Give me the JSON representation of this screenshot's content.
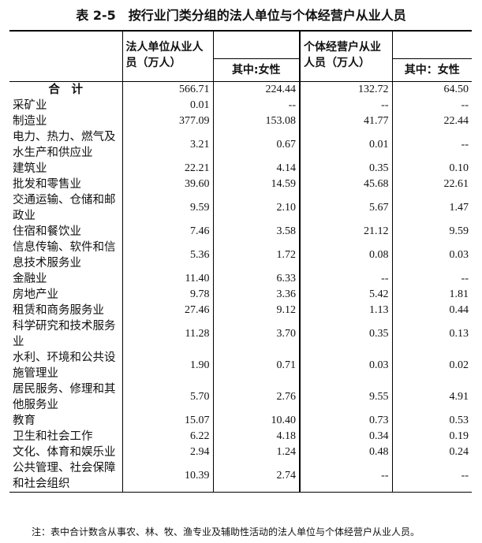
{
  "title": "表 2-5　按行业门类分组的法人单位与个体经营户从业人员",
  "table": {
    "header": [
      "法人单位从业人员（万人）",
      "其中:女性",
      "个体经营户从业人员（万人）",
      "其中：女性"
    ],
    "rows": [
      [
        "合　计",
        "566.71",
        "224.44",
        "132.72",
        "64.50"
      ],
      [
        "采矿业",
        "0.01",
        "--",
        "--",
        "--"
      ],
      [
        "制造业",
        "377.09",
        "153.08",
        "41.77",
        "22.44"
      ],
      [
        "电力、热力、燃气及水生产和供应业",
        "3.21",
        "0.67",
        "0.01",
        "--"
      ],
      [
        "建筑业",
        "22.21",
        "4.14",
        "0.35",
        "0.10"
      ],
      [
        "批发和零售业",
        "39.60",
        "14.59",
        "45.68",
        "22.61"
      ],
      [
        "交通运输、仓储和邮政业",
        "9.59",
        "2.10",
        "5.67",
        "1.47"
      ],
      [
        "住宿和餐饮业",
        "7.46",
        "3.58",
        "21.12",
        "9.59"
      ],
      [
        "信息传输、软件和信息技术服务业",
        "5.36",
        "1.72",
        "0.08",
        "0.03"
      ],
      [
        "金融业",
        "11.40",
        "6.33",
        "--",
        "--"
      ],
      [
        "房地产业",
        "9.78",
        "3.36",
        "5.42",
        "1.81"
      ],
      [
        "租赁和商务服务业",
        "27.46",
        "9.12",
        "1.13",
        "0.44"
      ],
      [
        "科学研究和技术服务业",
        "11.28",
        "3.70",
        "0.35",
        "0.13"
      ],
      [
        "水利、环境和公共设施管理业",
        "1.90",
        "0.71",
        "0.03",
        "0.02"
      ],
      [
        "居民服务、修理和其他服务业",
        "5.70",
        "2.76",
        "9.55",
        "4.91"
      ],
      [
        "教育",
        "15.07",
        "10.40",
        "0.73",
        "0.53"
      ],
      [
        "卫生和社会工作",
        "6.22",
        "4.18",
        "0.34",
        "0.19"
      ],
      [
        "文化、体育和娱乐业",
        "2.94",
        "1.24",
        "0.48",
        "0.24"
      ],
      [
        "公共管理、社会保障和社会组织",
        "10.39",
        "2.74",
        "--",
        "--"
      ]
    ]
  },
  "note": "注：表中合计数含从事农、林、牧、渔专业及辅助性活动的法人单位与个体经营户从业人员。"
}
